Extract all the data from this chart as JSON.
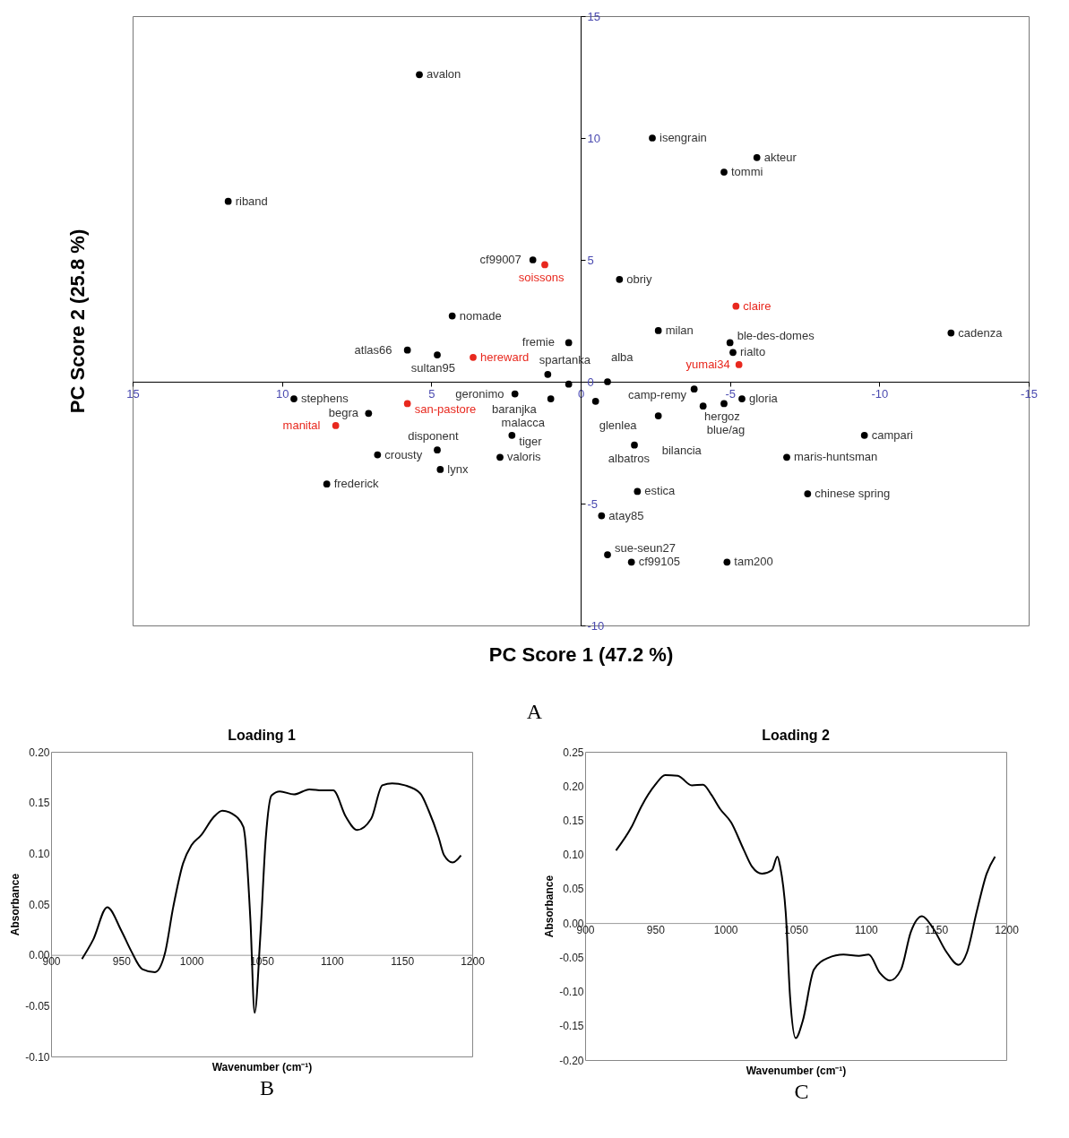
{
  "chart_data": [
    {
      "type": "scatter",
      "xlabel": "PC Score 1 (47.2 %)",
      "ylabel": "PC Score 2 (25.8 %)",
      "xlim": [
        15,
        -15
      ],
      "ylim": [
        -10,
        15
      ],
      "xticks": [
        15,
        10,
        5,
        0,
        -5,
        -10,
        -15
      ],
      "yticks": [
        -10,
        -5,
        0,
        5,
        10,
        15
      ],
      "marker": "circle",
      "series": [
        {
          "color": "#000000",
          "x": [
            5.4,
            11.8,
            -2.4,
            -5.9,
            -4.8,
            1.6,
            -1.3,
            4.3,
            -2.6,
            -12.4,
            -5.0,
            0.4,
            5.8,
            -5.1,
            4.8,
            1.1,
            -0.9,
            0.4,
            -3.8,
            2.2,
            9.6,
            -5.4,
            1.0,
            -0.5,
            -4.8,
            -4.1,
            7.1,
            -2.6,
            2.3,
            -9.5,
            -1.8,
            4.8,
            6.8,
            2.7,
            -6.9,
            4.7,
            8.5,
            -1.9,
            -7.6,
            -0.7,
            -0.9,
            -1.7,
            -4.9
          ],
          "values": [
            12.6,
            7.4,
            10.0,
            9.2,
            8.6,
            5.0,
            4.2,
            2.7,
            2.1,
            2.0,
            1.6,
            1.6,
            1.3,
            1.2,
            1.1,
            0.3,
            0.0,
            -0.1,
            -0.3,
            -0.5,
            -0.7,
            -0.7,
            -0.7,
            -0.8,
            -0.9,
            -1.0,
            -1.3,
            -1.4,
            -2.2,
            -2.2,
            -2.6,
            -2.8,
            -3.0,
            -3.1,
            -3.1,
            -3.6,
            -4.2,
            -4.5,
            -4.6,
            -5.5,
            -7.1,
            -7.4,
            -7.4
          ]
        },
        {
          "color": "#e8281e",
          "x": [
            1.2,
            -5.2,
            3.6,
            -5.3,
            5.8,
            8.2
          ],
          "values": [
            4.8,
            3.1,
            1.0,
            0.7,
            -0.9,
            -1.8
          ]
        }
      ],
      "annotations": [
        {
          "text": "avalon",
          "x": 5.4,
          "y": 12.6
        },
        {
          "text": "riband",
          "x": 11.8,
          "y": 7.4
        },
        {
          "text": "isengrain",
          "x": -2.4,
          "y": 10.0
        },
        {
          "text": "akteur",
          "x": -5.9,
          "y": 9.2
        },
        {
          "text": "tommi",
          "x": -4.8,
          "y": 8.6
        },
        {
          "text": "cf99007",
          "x": 1.6,
          "y": 5.0
        },
        {
          "text": "soissons",
          "x": 1.2,
          "y": 4.8
        },
        {
          "text": "obriy",
          "x": -1.3,
          "y": 4.2
        },
        {
          "text": "claire",
          "x": -5.2,
          "y": 3.1
        },
        {
          "text": "nomade",
          "x": 4.3,
          "y": 2.7
        },
        {
          "text": "milan",
          "x": -2.6,
          "y": 2.1
        },
        {
          "text": "cadenza",
          "x": -12.4,
          "y": 2.0
        },
        {
          "text": "ble-des-domes",
          "x": -5.0,
          "y": 1.6
        },
        {
          "text": "fremie",
          "x": 0.4,
          "y": 1.6
        },
        {
          "text": "atlas66",
          "x": 5.8,
          "y": 1.3
        },
        {
          "text": "rialto",
          "x": -5.1,
          "y": 1.2
        },
        {
          "text": "sultan95",
          "x": 4.8,
          "y": 1.1
        },
        {
          "text": "hereward",
          "x": 3.6,
          "y": 1.0
        },
        {
          "text": "yumai34",
          "x": -5.3,
          "y": 0.7
        },
        {
          "text": "baranjka",
          "x": 1.1,
          "y": 0.3
        },
        {
          "text": "alba",
          "x": -0.9,
          "y": 0.0
        },
        {
          "text": "spartanka",
          "x": 0.4,
          "y": -0.1
        },
        {
          "text": "camp-remy",
          "x": -3.8,
          "y": -0.3
        },
        {
          "text": "geronimo",
          "x": 2.2,
          "y": -0.5
        },
        {
          "text": "stephens",
          "x": 9.6,
          "y": -0.7
        },
        {
          "text": "gloria",
          "x": -5.4,
          "y": -0.7
        },
        {
          "text": "malacca",
          "x": 1.0,
          "y": -0.7
        },
        {
          "text": "glenlea",
          "x": -0.5,
          "y": -0.8
        },
        {
          "text": "san-pastore",
          "x": 5.8,
          "y": -0.9
        },
        {
          "text": "hergoz",
          "x": -4.8,
          "y": -0.9
        },
        {
          "text": "blue/ag",
          "x": -4.1,
          "y": -1.0
        },
        {
          "text": "begra",
          "x": 7.1,
          "y": -1.3
        },
        {
          "text": "bilancia",
          "x": -2.6,
          "y": -1.4
        },
        {
          "text": "manital",
          "x": 8.2,
          "y": -1.8
        },
        {
          "text": "tiger",
          "x": 2.3,
          "y": -2.2
        },
        {
          "text": "campari",
          "x": -9.5,
          "y": -2.2
        },
        {
          "text": "albatros",
          "x": -1.8,
          "y": -2.6
        },
        {
          "text": "disponent",
          "x": 4.8,
          "y": -2.8
        },
        {
          "text": "crousty",
          "x": 6.8,
          "y": -3.0
        },
        {
          "text": "valoris",
          "x": 2.7,
          "y": -3.1
        },
        {
          "text": "maris-huntsman",
          "x": -6.9,
          "y": -3.1
        },
        {
          "text": "lynx",
          "x": 4.7,
          "y": -3.6
        },
        {
          "text": "frederick",
          "x": 8.5,
          "y": -4.2
        },
        {
          "text": "estica",
          "x": -1.9,
          "y": -4.5
        },
        {
          "text": "chinese spring",
          "x": -7.6,
          "y": -4.6
        },
        {
          "text": "atay85",
          "x": -0.7,
          "y": -5.5
        },
        {
          "text": "sue-seun27",
          "x": -0.9,
          "y": -7.1
        },
        {
          "text": "cf99105",
          "x": -1.7,
          "y": -7.4
        },
        {
          "text": "tam200",
          "x": -4.9,
          "y": -7.4
        },
        "A"
      ]
    },
    {
      "type": "line",
      "title": "Loading 1",
      "xlabel": "Wavenumber (cm⁻¹)",
      "ylabel": "Absorbance",
      "xlim": [
        900,
        1200
      ],
      "ylim": [
        -0.1,
        0.2
      ],
      "xticks": [
        900,
        950,
        1000,
        1050,
        1100,
        1150,
        1200
      ],
      "yticks": [
        {
          "value": -0.1,
          "label": "-0.10"
        },
        {
          "value": -0.05,
          "label": "-0.05"
        },
        {
          "value": 0,
          "label": "0.00"
        },
        {
          "value": 0.05,
          "label": "0.05"
        },
        {
          "value": 0.1,
          "label": "0.10"
        },
        {
          "value": 0.15,
          "label": "0.15"
        },
        {
          "value": 0.2,
          "label": "0.20"
        }
      ],
      "series": [
        {
          "color": "#000000",
          "x": [
            922,
            930,
            940,
            950,
            957,
            965,
            974,
            981,
            987,
            994,
            1000,
            1007,
            1016,
            1022,
            1029,
            1037,
            1038,
            1042,
            1045,
            1049,
            1053,
            1057,
            1063,
            1073,
            1084,
            1093,
            1101,
            1110,
            1118,
            1128,
            1136,
            1143,
            1152,
            1163,
            1169,
            1176,
            1180,
            1186,
            1192
          ],
          "values": [
            -0.004,
            0.015,
            0.047,
            0.024,
            0.004,
            -0.014,
            -0.017,
            0.001,
            0.047,
            0.09,
            0.108,
            0.118,
            0.136,
            0.142,
            0.139,
            0.126,
            0.118,
            0.034,
            -0.057,
            0.017,
            0.116,
            0.157,
            0.161,
            0.158,
            0.163,
            0.162,
            0.162,
            0.136,
            0.123,
            0.134,
            0.167,
            0.169,
            0.167,
            0.159,
            0.142,
            0.116,
            0.098,
            0.091,
            0.098
          ]
        }
      ],
      "annotations": [
        "B"
      ]
    },
    {
      "type": "line",
      "title": "Loading 2",
      "xlabel": "Wavenumber (cm⁻¹)",
      "ylabel": "Absorbance",
      "xlim": [
        900,
        1200
      ],
      "ylim": [
        -0.2,
        0.25
      ],
      "xticks": [
        900,
        950,
        1000,
        1050,
        1100,
        1150,
        1200
      ],
      "yticks": [
        {
          "value": -0.2,
          "label": "-0.20"
        },
        {
          "value": -0.15,
          "label": "-0.15"
        },
        {
          "value": -0.1,
          "label": "-0.10"
        },
        {
          "value": -0.05,
          "label": "-0.05"
        },
        {
          "value": 0,
          "label": "0.00"
        },
        {
          "value": 0.05,
          "label": "0.05"
        },
        {
          "value": 0.1,
          "label": "0.10"
        },
        {
          "value": 0.15,
          "label": "0.15"
        },
        {
          "value": 0.2,
          "label": "0.20"
        },
        {
          "value": 0.25,
          "label": "0.25"
        }
      ],
      "series": [
        {
          "color": "#000000",
          "x": [
            922,
            933,
            940,
            950,
            957,
            966,
            976,
            984,
            990,
            996,
            1004,
            1013,
            1019,
            1026,
            1033,
            1037,
            1039,
            1043,
            1046,
            1050,
            1055,
            1063,
            1073,
            1084,
            1095,
            1102,
            1110,
            1117,
            1125,
            1132,
            1140,
            1148,
            1157,
            1166,
            1172,
            1179,
            1186,
            1192
          ],
          "values": [
            0.106,
            0.14,
            0.17,
            0.202,
            0.216,
            0.215,
            0.201,
            0.202,
            0.187,
            0.167,
            0.147,
            0.107,
            0.082,
            0.072,
            0.077,
            0.097,
            0.082,
            0.012,
            -0.108,
            -0.168,
            -0.143,
            -0.068,
            -0.051,
            -0.046,
            -0.048,
            -0.046,
            -0.073,
            -0.084,
            -0.068,
            -0.013,
            0.01,
            -0.008,
            -0.041,
            -0.061,
            -0.043,
            0.017,
            0.072,
            0.097
          ]
        }
      ],
      "annotations": [
        "C"
      ]
    }
  ]
}
